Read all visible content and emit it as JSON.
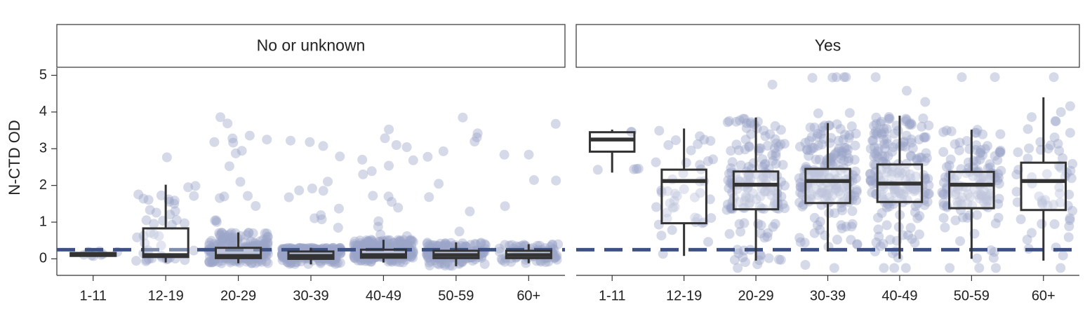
{
  "chart_data": {
    "type": "box+jitter",
    "ylabel": "N-CTD OD",
    "ylim": [
      -0.45,
      5.2
    ],
    "yticks": [
      0,
      1,
      2,
      3,
      4,
      5
    ],
    "categories": [
      "1-11",
      "12-19",
      "20-29",
      "30-39",
      "40-49",
      "50-59",
      "60+"
    ],
    "threshold": 0.25,
    "colors": {
      "points": "#9aa5c8",
      "box": "#333333",
      "threshold": "#3d5283"
    },
    "panels": [
      {
        "title": "No or unknown",
        "boxes": [
          {
            "category": "1-11",
            "q1": 0.08,
            "median": 0.12,
            "q3": 0.16,
            "whisker_low": 0.07,
            "whisker_high": 0.18,
            "n": 8
          },
          {
            "category": "12-19",
            "q1": 0.05,
            "median": 0.1,
            "q3": 0.83,
            "whisker_low": -0.1,
            "whisker_high": 2.02,
            "n": 45
          },
          {
            "category": "20-29",
            "q1": 0.02,
            "median": 0.08,
            "q3": 0.3,
            "whisker_low": -0.12,
            "whisker_high": 0.72,
            "n": 260
          },
          {
            "category": "30-39",
            "q1": 0.0,
            "median": 0.08,
            "q3": 0.2,
            "whisker_low": -0.15,
            "whisker_high": 0.3,
            "n": 300
          },
          {
            "category": "40-49",
            "q1": 0.03,
            "median": 0.1,
            "q3": 0.25,
            "whisker_low": -0.1,
            "whisker_high": 0.52,
            "n": 280
          },
          {
            "category": "50-59",
            "q1": 0.02,
            "median": 0.1,
            "q3": 0.22,
            "whisker_low": -0.2,
            "whisker_high": 0.45,
            "n": 200
          },
          {
            "category": "60+",
            "q1": 0.02,
            "median": 0.1,
            "q3": 0.22,
            "whisker_low": -0.12,
            "whisker_high": 0.4,
            "n": 90
          }
        ]
      },
      {
        "title": "Yes",
        "boxes": [
          {
            "category": "1-11",
            "q1": 2.92,
            "median": 3.25,
            "q3": 3.45,
            "whisker_low": 2.35,
            "whisker_high": 3.52,
            "n": 6
          },
          {
            "category": "12-19",
            "q1": 0.97,
            "median": 2.12,
            "q3": 2.43,
            "whisker_low": 0.08,
            "whisker_high": 3.55,
            "n": 45
          },
          {
            "category": "20-29",
            "q1": 1.35,
            "median": 2.02,
            "q3": 2.38,
            "whisker_low": -0.05,
            "whisker_high": 3.85,
            "n": 170
          },
          {
            "category": "30-39",
            "q1": 1.52,
            "median": 2.12,
            "q3": 2.45,
            "whisker_low": 0.2,
            "whisker_high": 3.7,
            "n": 200
          },
          {
            "category": "40-49",
            "q1": 1.55,
            "median": 2.05,
            "q3": 2.57,
            "whisker_low": 0.0,
            "whisker_high": 3.9,
            "n": 200
          },
          {
            "category": "50-59",
            "q1": 1.38,
            "median": 2.02,
            "q3": 2.37,
            "whisker_low": 0.0,
            "whisker_high": 3.52,
            "n": 140
          },
          {
            "category": "60+",
            "q1": 1.33,
            "median": 2.12,
            "q3": 2.62,
            "whisker_low": -0.05,
            "whisker_high": 4.4,
            "n": 60
          }
        ]
      }
    ]
  }
}
